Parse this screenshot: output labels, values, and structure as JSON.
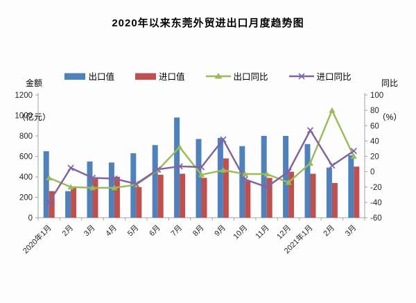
{
  "title": "2020年以来东莞外贸进出口月度趋势图",
  "left_axis_title": {
    "line1": "金额",
    "line2": "（亿元）"
  },
  "right_axis_title": {
    "line1": "同比",
    "line2": "（%）"
  },
  "legend": [
    {
      "label": "出口值",
      "type": "bar",
      "color": "#4F81BD"
    },
    {
      "label": "进口值",
      "type": "bar",
      "color": "#C0504D"
    },
    {
      "label": "出口同比",
      "type": "line-triangle",
      "color": "#9BBB59"
    },
    {
      "label": "进口同比",
      "type": "line-x",
      "color": "#8064A2"
    }
  ],
  "chart_data": {
    "type": "bar",
    "subtype": "bar+line combo, dual axis",
    "title": "2020年以来东莞外贸进出口月度趋势图",
    "categories": [
      "2020年1月",
      "2月",
      "3月",
      "4月",
      "5月",
      "6月",
      "7月",
      "8月",
      "9月",
      "10月",
      "11月",
      "12月",
      "2021年1月",
      "2月",
      "3月"
    ],
    "series": [
      {
        "name": "出口值",
        "type": "bar",
        "axis": "left",
        "color": "#4F81BD",
        "values": [
          650,
          260,
          550,
          540,
          630,
          710,
          980,
          770,
          780,
          700,
          800,
          800,
          720,
          490,
          610
        ]
      },
      {
        "name": "进口值",
        "type": "bar",
        "axis": "left",
        "color": "#C0504D",
        "values": [
          260,
          300,
          380,
          400,
          300,
          420,
          430,
          390,
          580,
          360,
          390,
          450,
          430,
          340,
          500
        ]
      },
      {
        "name": "出口同比",
        "type": "line",
        "marker": "triangle",
        "axis": "right",
        "color": "#9BBB59",
        "values": [
          -8,
          -20,
          -21,
          -21,
          -17,
          2,
          32,
          -4,
          2,
          -3,
          -3,
          -14,
          11,
          80,
          20
        ]
      },
      {
        "name": "进口同比",
        "type": "line",
        "marker": "x",
        "axis": "right",
        "color": "#8064A2",
        "values": [
          -40,
          5,
          -8,
          -9,
          -16,
          3,
          7,
          6,
          42,
          -10,
          -20,
          0,
          54,
          8,
          27
        ]
      }
    ],
    "left_axis": {
      "label": "金额（亿元）",
      "min": 0,
      "max": 1200,
      "step": 200
    },
    "right_axis": {
      "label": "同比（%）",
      "min": -60,
      "max": 100,
      "step": 20
    },
    "grid": false,
    "legend_position": "top"
  }
}
